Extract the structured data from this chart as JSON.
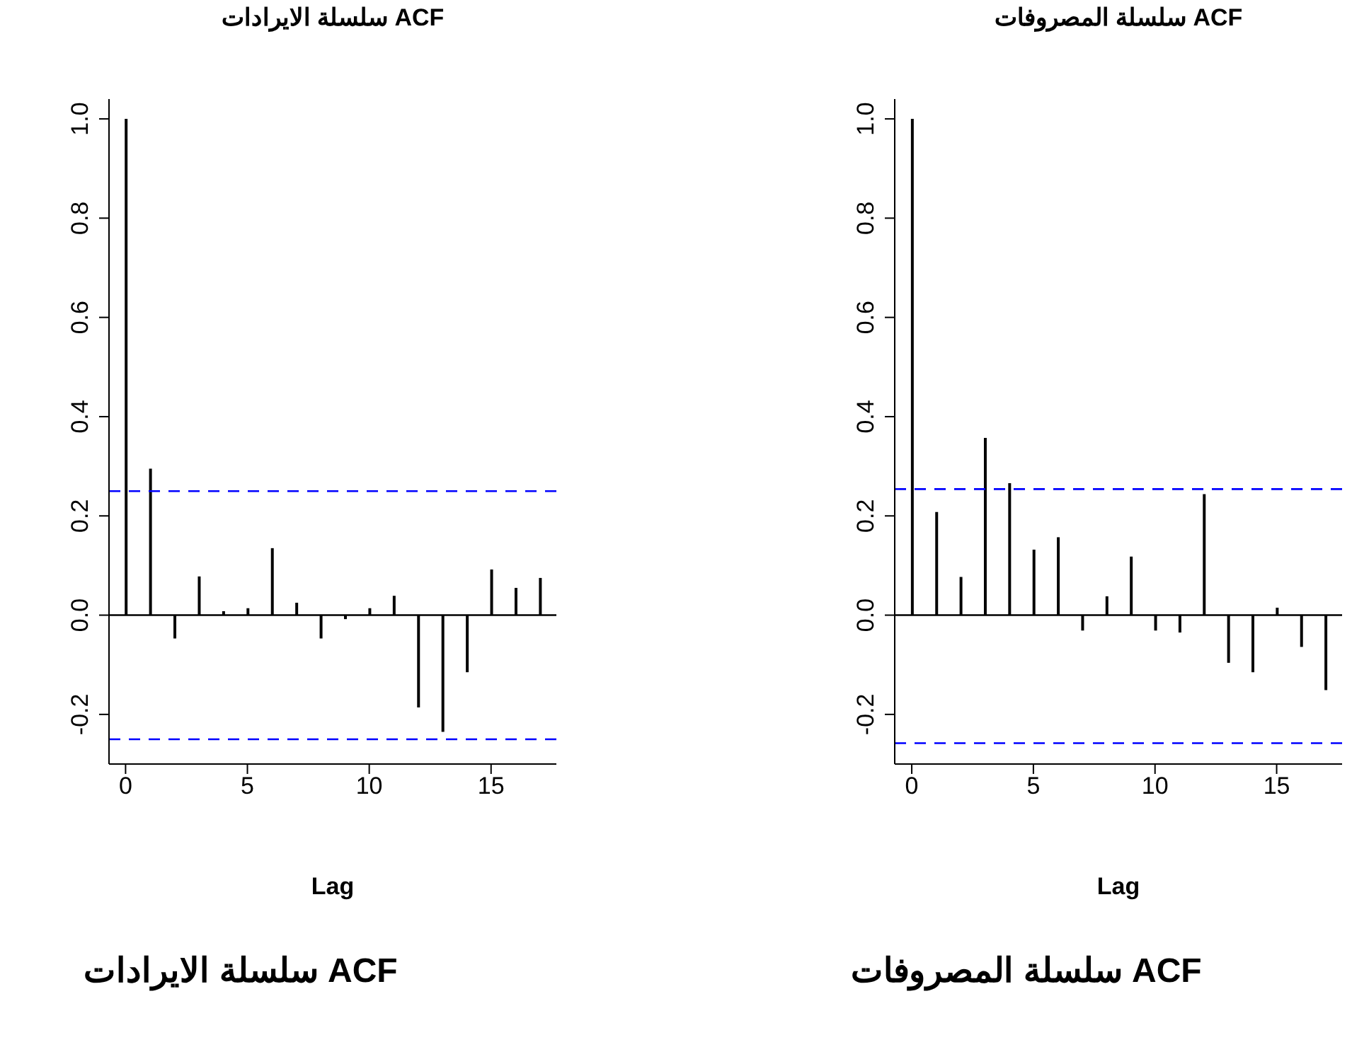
{
  "chart_data": [
    {
      "type": "bar",
      "title": "ACF سلسلة الايرادات",
      "xlabel": "Lag",
      "color": "#000000",
      "x": [
        0,
        1,
        2,
        3,
        4,
        5,
        6,
        7,
        8,
        9,
        10,
        11,
        12,
        13,
        14,
        15,
        16,
        17
      ],
      "values": [
        1.0,
        0.295,
        -0.047,
        0.078,
        0.008,
        0.014,
        0.135,
        0.025,
        -0.047,
        -0.008,
        0.014,
        0.039,
        -0.186,
        -0.235,
        -0.115,
        0.092,
        0.055,
        0.075
      ],
      "xlim": [
        -0.68,
        17.68
      ],
      "xticks": [
        0,
        5,
        10,
        15
      ],
      "ylim": [
        -0.3,
        1.04
      ],
      "yticks": [
        {
          "value": -0.2,
          "label": "-0.2"
        },
        {
          "value": 0,
          "label": "0.0"
        },
        {
          "value": 0.2,
          "label": "0.2"
        },
        {
          "value": 0.4,
          "label": "0.4"
        },
        {
          "value": 0.6,
          "label": "0.6"
        },
        {
          "value": 0.8,
          "label": "0.8"
        },
        {
          "value": 1,
          "label": "1.0"
        }
      ],
      "ref_lines": [
        {
          "axis": "y",
          "value": 0,
          "color": "#000000",
          "line_style": "solid"
        },
        {
          "axis": "y",
          "value": 0.25,
          "color": "#0000ff",
          "line_style": "dashed"
        },
        {
          "axis": "y",
          "value": -0.25,
          "color": "#0000ff",
          "line_style": "dashed"
        }
      ],
      "annotations": [
        "ACF سلسلة الايرادات"
      ]
    },
    {
      "type": "bar",
      "title": "ACF سلسلة المصروفات",
      "xlabel": "Lag",
      "color": "#000000",
      "x": [
        0,
        1,
        2,
        3,
        4,
        5,
        6,
        7,
        8,
        9,
        10,
        11,
        12,
        13,
        14,
        15,
        16,
        17
      ],
      "values": [
        1.0,
        0.208,
        0.077,
        0.357,
        0.266,
        0.132,
        0.157,
        -0.031,
        0.038,
        0.118,
        -0.031,
        -0.035,
        0.244,
        -0.096,
        -0.115,
        0.015,
        -0.064,
        -0.151
      ],
      "xlim": [
        -0.7,
        17.69
      ],
      "xticks": [
        0,
        5,
        10,
        15
      ],
      "ylim": [
        -0.3,
        1.04
      ],
      "yticks": [
        {
          "value": -0.2,
          "label": "-0.2"
        },
        {
          "value": 0,
          "label": "0.0"
        },
        {
          "value": 0.2,
          "label": "0.2"
        },
        {
          "value": 0.4,
          "label": "0.4"
        },
        {
          "value": 0.6,
          "label": "0.6"
        },
        {
          "value": 0.8,
          "label": "0.8"
        },
        {
          "value": 1,
          "label": "1.0"
        }
      ],
      "ref_lines": [
        {
          "axis": "y",
          "value": 0,
          "color": "#000000",
          "line_style": "solid"
        },
        {
          "axis": "y",
          "value": 0.254,
          "color": "#0000ff",
          "line_style": "dashed"
        },
        {
          "axis": "y",
          "value": -0.258,
          "color": "#0000ff",
          "line_style": "dashed"
        }
      ],
      "annotations": [
        "ACF سلسلة المصروفات"
      ]
    }
  ]
}
